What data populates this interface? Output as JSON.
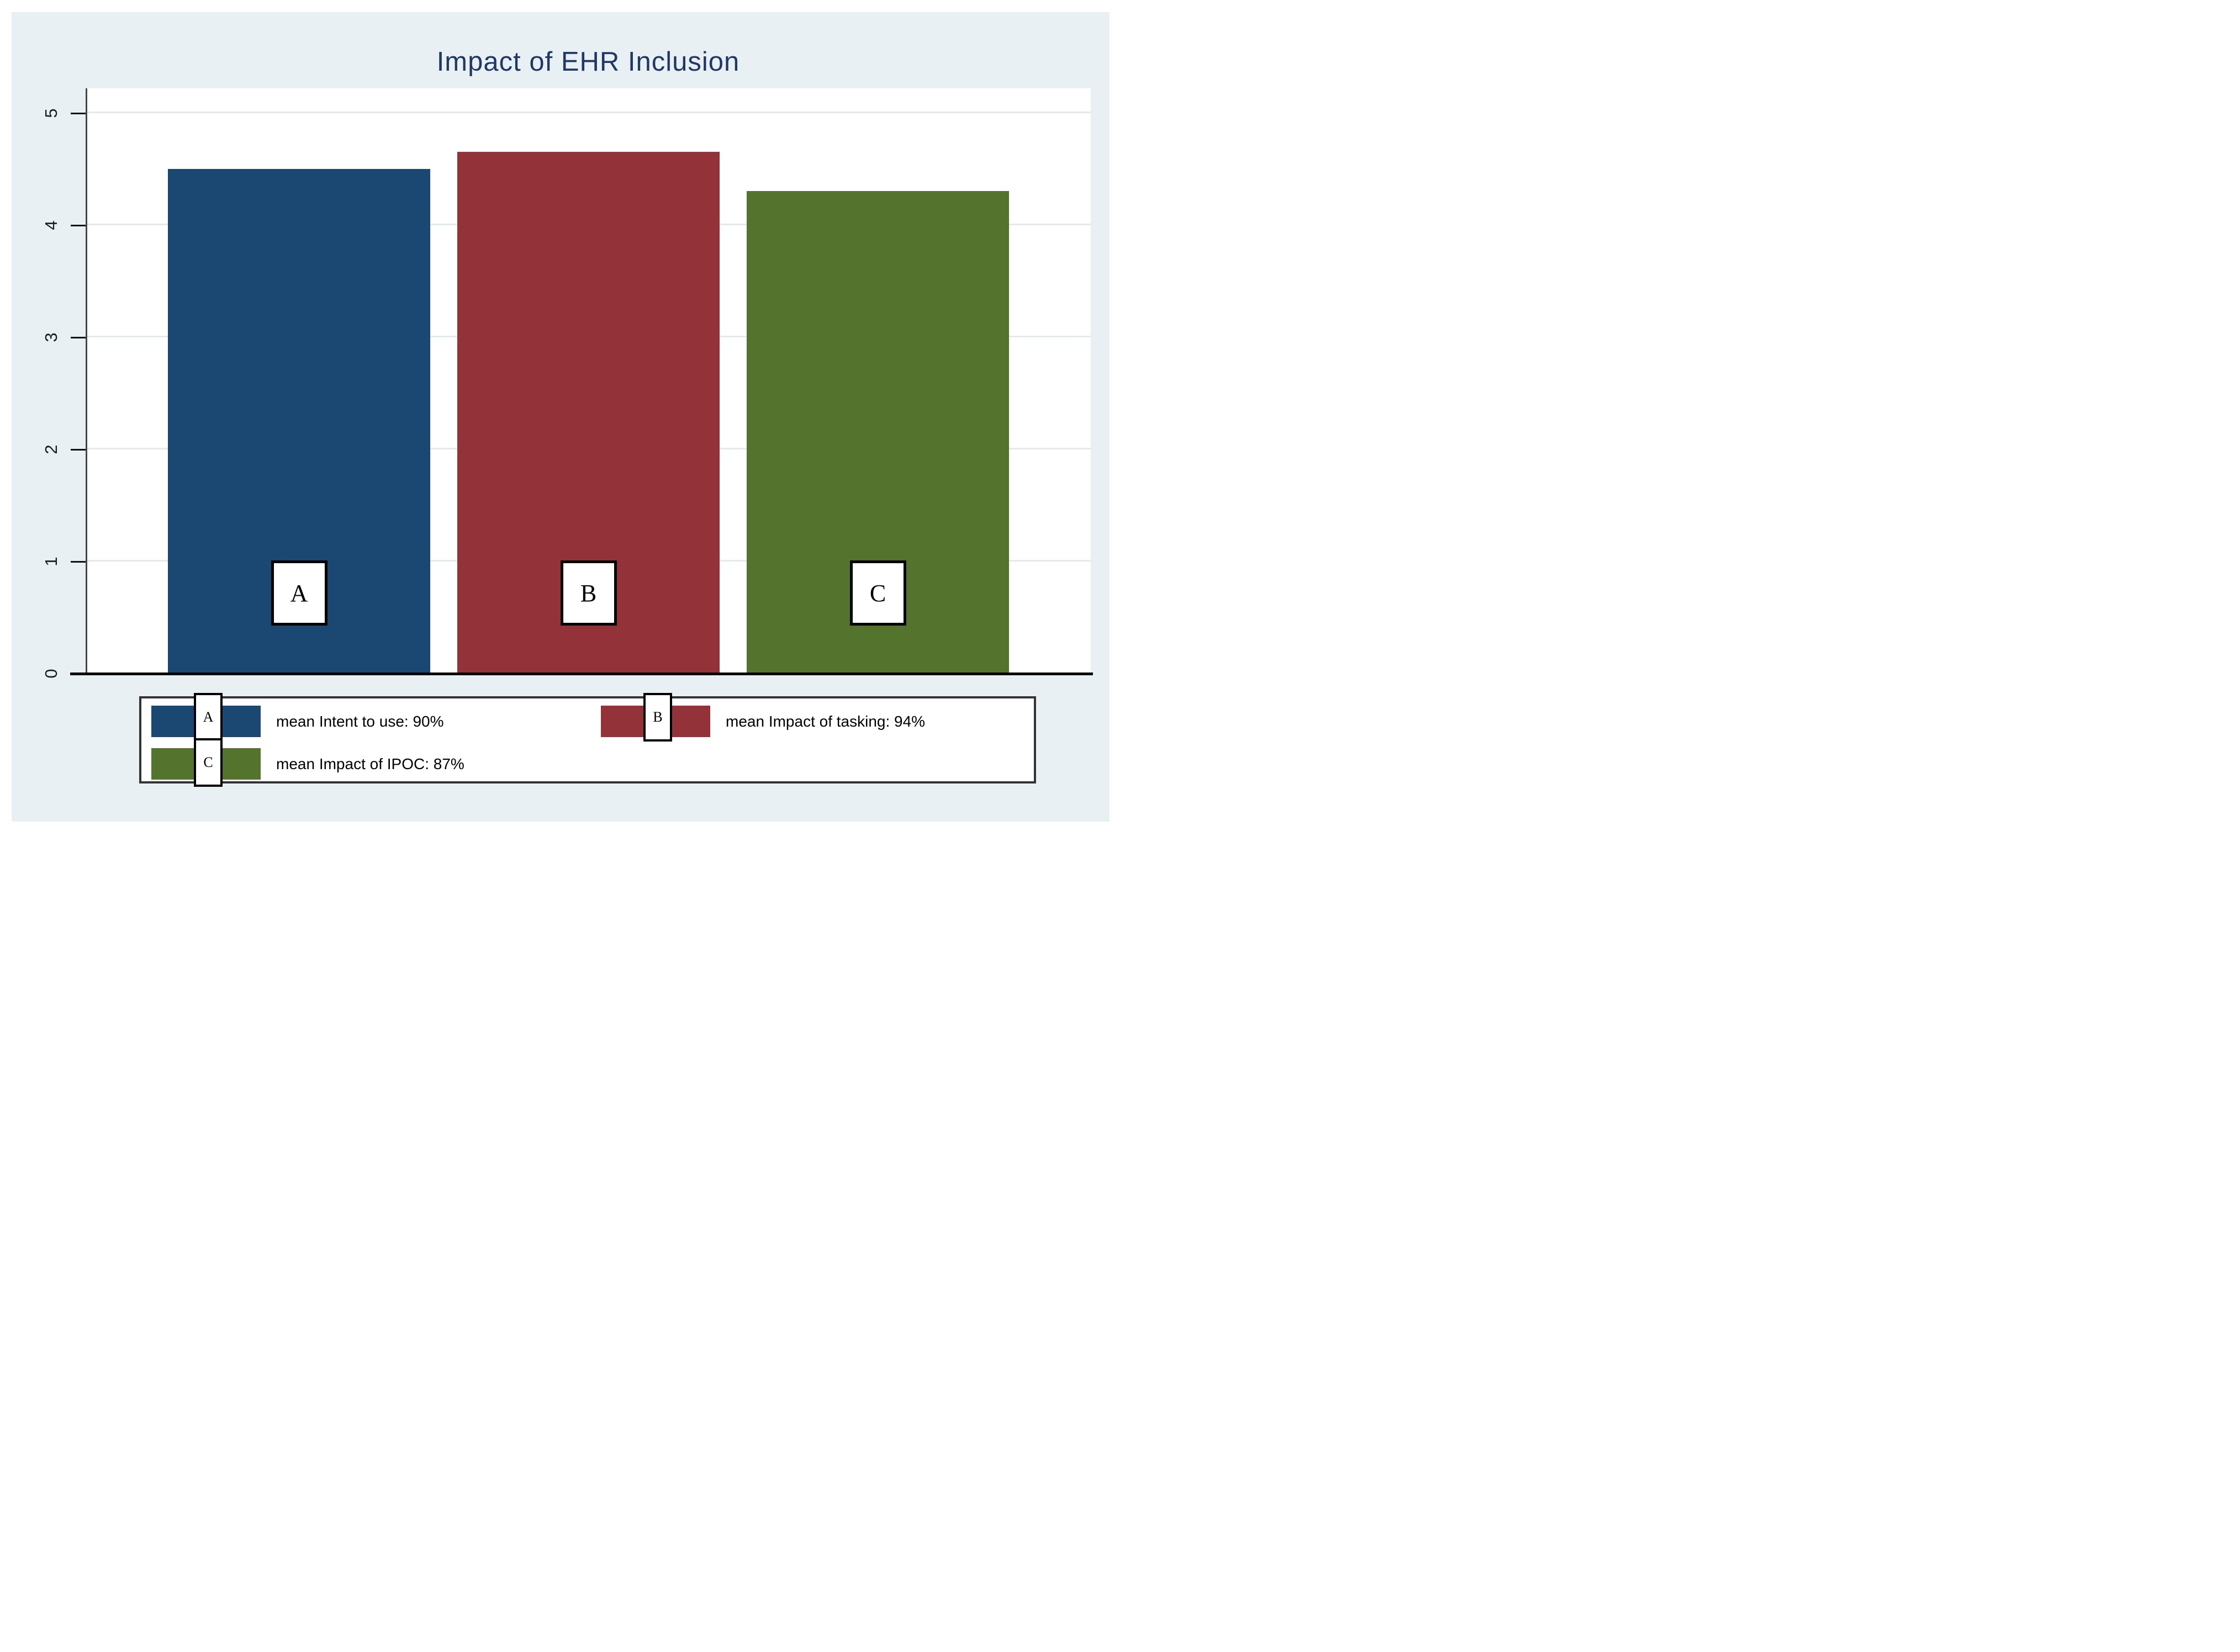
{
  "figure": {
    "title": "Impact of EHR Inclusion",
    "title_color": "#1f3864",
    "canvas_background": "#e9f0f3",
    "plot_background": "#ffffff"
  },
  "y_axis": {
    "tick_labels": [
      "0",
      "1",
      "2",
      "3",
      "4",
      "5"
    ]
  },
  "legend": {
    "entries": [
      {
        "letter": "A",
        "label": "mean Intent to use: 90%"
      },
      {
        "letter": "B",
        "label": "mean Impact of tasking: 94%"
      },
      {
        "letter": "C",
        "label": "mean Impact of IPOC: 87%"
      }
    ]
  },
  "chart_data": {
    "type": "bar",
    "title": "Impact of EHR Inclusion",
    "categories": [
      "A",
      "B",
      "C"
    ],
    "values": [
      4.5,
      4.65,
      4.3
    ],
    "series_labels": [
      "mean Intent to use: 90%",
      "mean Impact of tasking: 94%",
      "mean Impact of IPOC: 87%"
    ],
    "colors": [
      "#1b4872",
      "#933339",
      "#54742d"
    ],
    "xlabel": "",
    "ylabel": "",
    "ylim": [
      0,
      5.2
    ],
    "yticks": [
      0,
      1,
      2,
      3,
      4,
      5
    ],
    "grid": true,
    "grid_color": "#e2eaec",
    "legend_position": "bottom"
  }
}
